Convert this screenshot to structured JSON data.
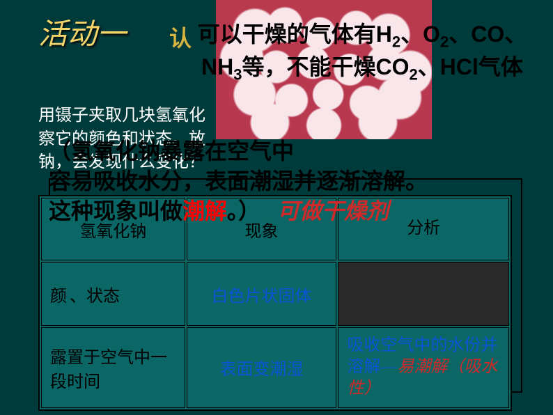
{
  "activity_title": "活动一",
  "subtitle": "认",
  "gas_text_html": "可以干燥的气体有H<sub>2</sub>、O<sub>2</sub>、CO、NH<sub>3</sub>等，不能干燥CO<sub>2</sub>、HCl气体",
  "instruction_lines": [
    "用镊子夹取几块氢氧化",
    "察它的颜色和状态。放",
    "钠，会发现什么变化？"
  ],
  "overlay": {
    "prefix1": "（氢氧化钠暴露在空气中",
    "prefix2": "容易吸收水分，表面潮湿并逐渐溶解。这种现象叫做",
    "chao_jie": "潮解",
    "dot": "。）",
    "dryer": "可做干燥剂"
  },
  "table": {
    "headers": [
      "氢氧化钠",
      "现象",
      "分析"
    ],
    "rows": [
      {
        "c1": "颜色、状态",
        "c2": "白色片状固体",
        "c3": ""
      },
      {
        "c1": "露置于空气中一段时间",
        "c2": "表面变潮湿",
        "c3_plain": "吸收空气中的水份并溶解—",
        "c3_em": "易潮解（吸水性）"
      }
    ]
  },
  "colors": {
    "background": "#003b3b",
    "table_bg": "#0b6666",
    "yellow": "#f3d36a",
    "blue": "#0a57d6",
    "red": "#ff0000",
    "red_italic": "#cf2a2a",
    "photo_bg": "#b9394d"
  }
}
